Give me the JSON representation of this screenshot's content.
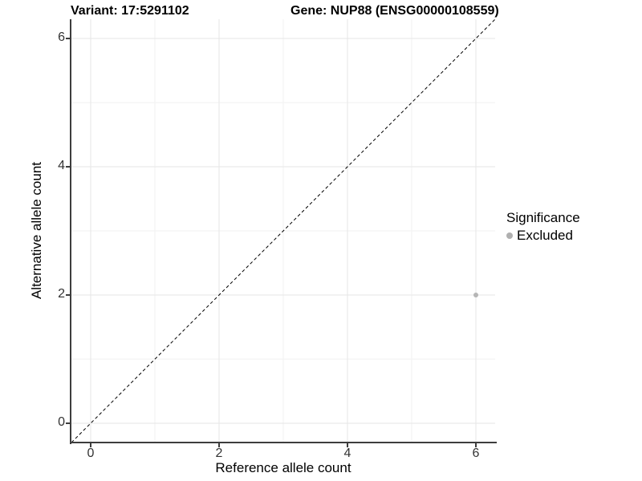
{
  "titles": {
    "variant": "Variant: 17:5291102",
    "gene": "Gene: NUP88 (ENSG00000108559)"
  },
  "axes": {
    "x": {
      "label": "Reference allele count",
      "ticks": [
        "0",
        "2",
        "4",
        "6"
      ]
    },
    "y": {
      "label": "Alternative allele count",
      "ticks": [
        "0",
        "2",
        "4",
        "6"
      ]
    }
  },
  "legend": {
    "title": "Significance",
    "items": [
      {
        "label": "Excluded",
        "marker": "circle",
        "color": "#b0b0b0"
      }
    ]
  },
  "chart_data": {
    "type": "scatter",
    "title_left": "Variant: 17:5291102",
    "title_right": "Gene: NUP88 (ENSG00000108559)",
    "xlabel": "Reference allele count",
    "ylabel": "Alternative allele count",
    "xlim": [
      -0.3,
      6.3
    ],
    "ylim": [
      -0.3,
      6.3
    ],
    "x_ticks": [
      0,
      2,
      4,
      6
    ],
    "y_ticks": [
      0,
      2,
      4,
      6
    ],
    "minor_gridlines": [
      1,
      3,
      5
    ],
    "grid": true,
    "legend_position": "right",
    "series": [
      {
        "name": "Excluded",
        "color": "#b5b5b5",
        "point_radius": 3,
        "points": [
          {
            "x": 6,
            "y": 2
          }
        ]
      }
    ],
    "reference_line": {
      "style": "dashed",
      "color": "#000000",
      "from": [
        -0.3,
        -0.3
      ],
      "to": [
        6.3,
        6.3
      ]
    }
  },
  "colors": {
    "background": "#ffffff",
    "axis_line": "#3d3d3d",
    "major_grid": "#e5e5e5",
    "minor_grid": "#f2f2f2",
    "tick_label": "#333333",
    "title": "#000000"
  }
}
